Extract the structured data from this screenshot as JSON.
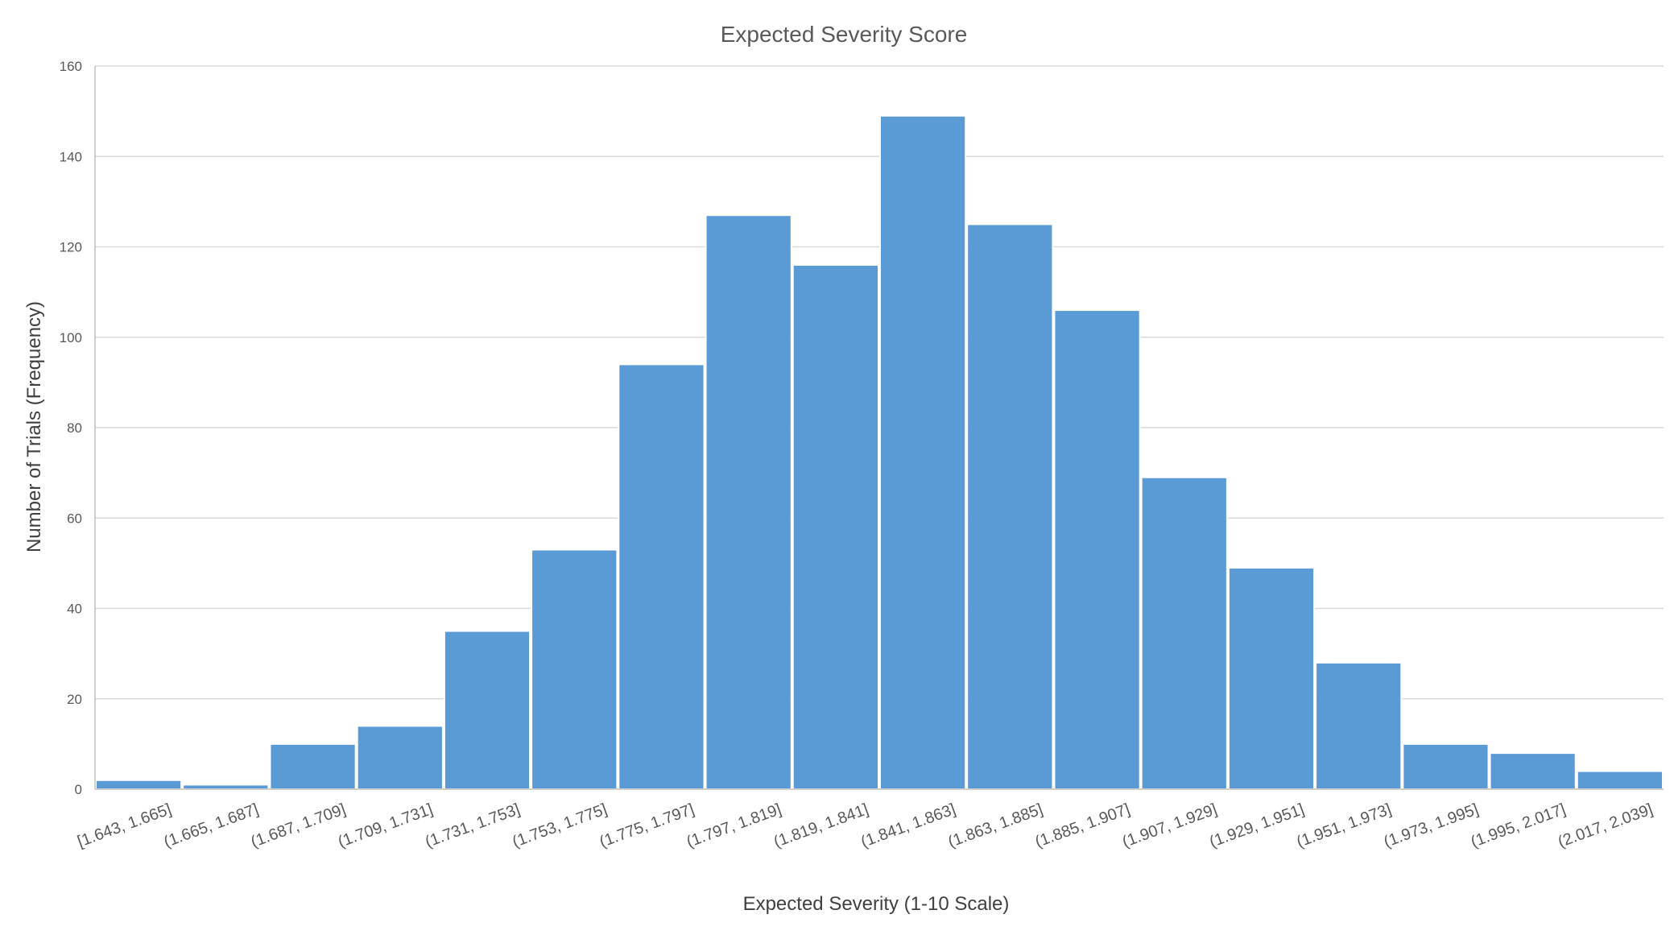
{
  "chart_data": {
    "type": "bar",
    "title": "Expected Severity Score",
    "xlabel": "Expected Severity (1-10 Scale)",
    "ylabel": "Number of Trials (Frequency)",
    "ylim": [
      0,
      160
    ],
    "yticks": [
      "0",
      "20",
      "40",
      "60",
      "80",
      "100",
      "120",
      "140",
      "160"
    ],
    "grid": true,
    "legend": "none",
    "bar_color": "#5b9bd5",
    "categories": [
      "[1.643, 1.665]",
      "(1.665, 1.687]",
      "(1.687, 1.709]",
      "(1.709, 1.731]",
      "(1.731, 1.753]",
      "(1.753, 1.775]",
      "(1.775, 1.797]",
      "(1.797, 1.819]",
      "(1.819, 1.841]",
      "(1.841, 1.863]",
      "(1.863, 1.885]",
      "(1.885, 1.907]",
      "(1.907, 1.929]",
      "(1.929, 1.951]",
      "(1.951, 1.973]",
      "(1.973, 1.995]",
      "(1.995, 2.017]",
      "(2.017, 2.039]"
    ],
    "values": [
      2,
      1,
      10,
      14,
      35,
      53,
      94,
      127,
      116,
      149,
      125,
      106,
      69,
      49,
      28,
      10,
      8,
      4
    ]
  }
}
